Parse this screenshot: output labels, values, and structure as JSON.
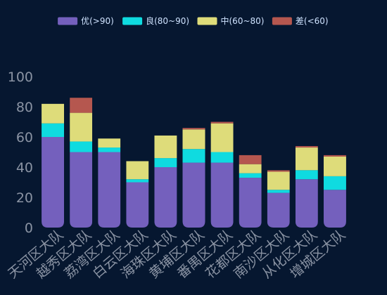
{
  "chart_data": {
    "type": "bar",
    "stacked": true,
    "categories": [
      "天河区大队",
      "越秀区大队",
      "荔湾区大队",
      "白云区大队",
      "海珠区大队",
      "黄埔区大队",
      "番禺区大队",
      "花都区大队",
      "南沙区大队",
      "从化区大队",
      "增城区大队"
    ],
    "series": [
      {
        "name": "优(>90)",
        "color": "#7460bd",
        "values": [
          60,
          50,
          50,
          30,
          40,
          43,
          43,
          33,
          23,
          32,
          25
        ]
      },
      {
        "name": "良(80~90)",
        "color": "#0fdbe0",
        "values": [
          9,
          7,
          3,
          2,
          6,
          9,
          7,
          3,
          2,
          6,
          9
        ]
      },
      {
        "name": "中(60~80)",
        "color": "#dedc7a",
        "values": [
          13,
          19,
          6,
          12,
          15,
          13,
          19,
          6,
          12,
          15,
          13
        ]
      },
      {
        "name": "差(<60)",
        "color": "#b5574f",
        "values": [
          0,
          10,
          0,
          0,
          0,
          1,
          1,
          6,
          1,
          1,
          1
        ]
      }
    ],
    "ylim": [
      0,
      100
    ],
    "yticks": [
      0,
      20,
      40,
      60,
      80,
      100
    ],
    "legend_position": "top-center",
    "grid": false,
    "xlabel": "",
    "ylabel": "",
    "title": ""
  }
}
